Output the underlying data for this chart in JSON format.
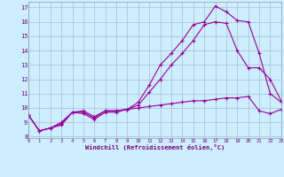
{
  "x": [
    0,
    1,
    2,
    3,
    4,
    5,
    6,
    7,
    8,
    9,
    10,
    11,
    12,
    13,
    14,
    15,
    16,
    17,
    18,
    19,
    20,
    21,
    22,
    23
  ],
  "line1": [
    9.5,
    8.4,
    8.6,
    8.9,
    9.7,
    9.7,
    9.3,
    9.8,
    9.8,
    9.9,
    10.0,
    10.1,
    10.2,
    10.3,
    10.4,
    10.5,
    10.5,
    10.6,
    10.7,
    10.7,
    10.8,
    9.8,
    9.6,
    9.9
  ],
  "line2": [
    9.5,
    8.4,
    8.6,
    9.0,
    9.7,
    9.8,
    9.4,
    9.8,
    9.8,
    9.9,
    10.2,
    11.1,
    12.0,
    13.0,
    13.8,
    14.7,
    15.8,
    16.0,
    15.9,
    14.0,
    12.8,
    12.8,
    12.0,
    10.5
  ],
  "line3": [
    9.5,
    8.4,
    8.6,
    8.8,
    9.7,
    9.6,
    9.2,
    9.7,
    9.7,
    9.9,
    10.4,
    11.6,
    13.0,
    13.8,
    14.7,
    15.8,
    16.0,
    17.1,
    16.7,
    16.1,
    16.0,
    13.8,
    11.0,
    10.4
  ],
  "bg_color": "#cceeff",
  "grid_color": "#aabbcc",
  "line_color": "#990099",
  "xlabel": "Windchill (Refroidissement éolien,°C)",
  "xlim": [
    0,
    23
  ],
  "ylim": [
    7.9,
    17.4
  ],
  "xticks": [
    0,
    1,
    2,
    3,
    4,
    5,
    6,
    7,
    8,
    9,
    10,
    11,
    12,
    13,
    14,
    15,
    16,
    17,
    18,
    19,
    20,
    21,
    22,
    23
  ],
  "yticks": [
    8,
    9,
    10,
    11,
    12,
    13,
    14,
    15,
    16,
    17
  ]
}
